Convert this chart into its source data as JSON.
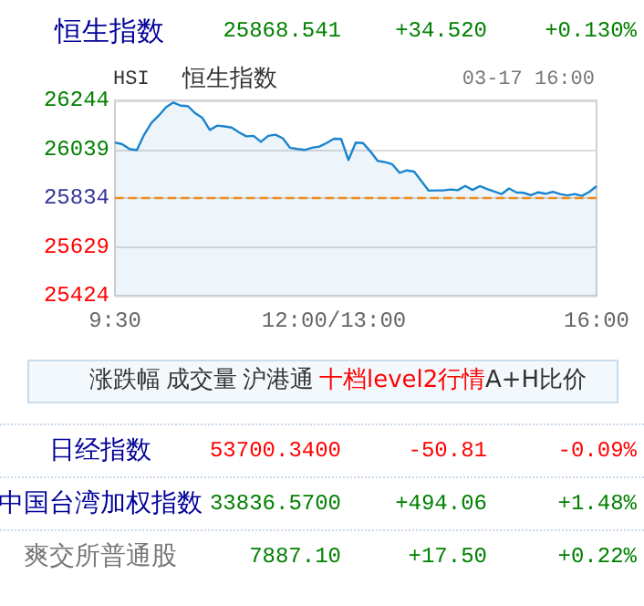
{
  "chart_data": {
    "type": "area",
    "title": "恒生指数",
    "annotations": [
      "25868.541",
      "+34.520",
      "+0.130%",
      "HSI",
      "恒生指数",
      "03-17 16:00",
      "涨跌幅",
      "成交量",
      "沪港通",
      "十档level2行情",
      "A+H比价",
      "日经指数",
      "53700.3400",
      "-50.81",
      "-0.09%",
      "中国台湾加权指数",
      "33836.5700",
      "+494.06",
      "+1.48%",
      "爽交所普通股",
      "7887.10",
      "+17.50",
      "+0.22%"
    ],
    "categories": [
      "9:30",
      null,
      null,
      null,
      null,
      null,
      null,
      null,
      null,
      null,
      null,
      null,
      null,
      null,
      null,
      null,
      null,
      null,
      null,
      null,
      null,
      null,
      null,
      null,
      null,
      null,
      null,
      null,
      null,
      null,
      "12:00/13:00",
      null,
      null,
      null,
      null,
      null,
      null,
      null,
      null,
      null,
      null,
      null,
      null,
      null,
      null,
      null,
      null,
      null,
      null,
      null,
      null,
      null,
      null,
      null,
      null,
      null,
      null,
      null,
      null,
      null,
      null,
      null,
      null,
      null,
      null,
      null,
      "16:00"
    ],
    "series": [
      {
        "color": "#1a84cc",
        "values": [
          26067,
          26060,
          26040,
          26035,
          26100,
          26150,
          26180,
          26215,
          26235,
          26222,
          26220,
          26190,
          26170,
          26120,
          26138,
          26135,
          26130,
          26110,
          26093,
          26095,
          26070,
          26095,
          26100,
          26085,
          26045,
          26040,
          26036,
          26045,
          26050,
          26065,
          26083,
          26082,
          25994,
          26067,
          26065,
          26030,
          25990,
          25985,
          25976,
          25940,
          25950,
          25945,
          25905,
          25865,
          25866,
          25866,
          25870,
          25867,
          25885,
          25868,
          25884,
          25872,
          25861,
          25851,
          25874,
          25858,
          25856,
          25846,
          25858,
          25852,
          25860,
          25851,
          25845,
          25851,
          25843,
          25860,
          25884
        ]
      }
    ],
    "ylim": [
      25424,
      26244
    ],
    "yticks": [
      25424,
      25629,
      25834,
      26039,
      26244
    ],
    "ref_lines": [
      {
        "axis": "y",
        "value": 25834,
        "color": "#f08c1e",
        "line_style": "dashed"
      }
    ],
    "grid": "y"
  }
}
